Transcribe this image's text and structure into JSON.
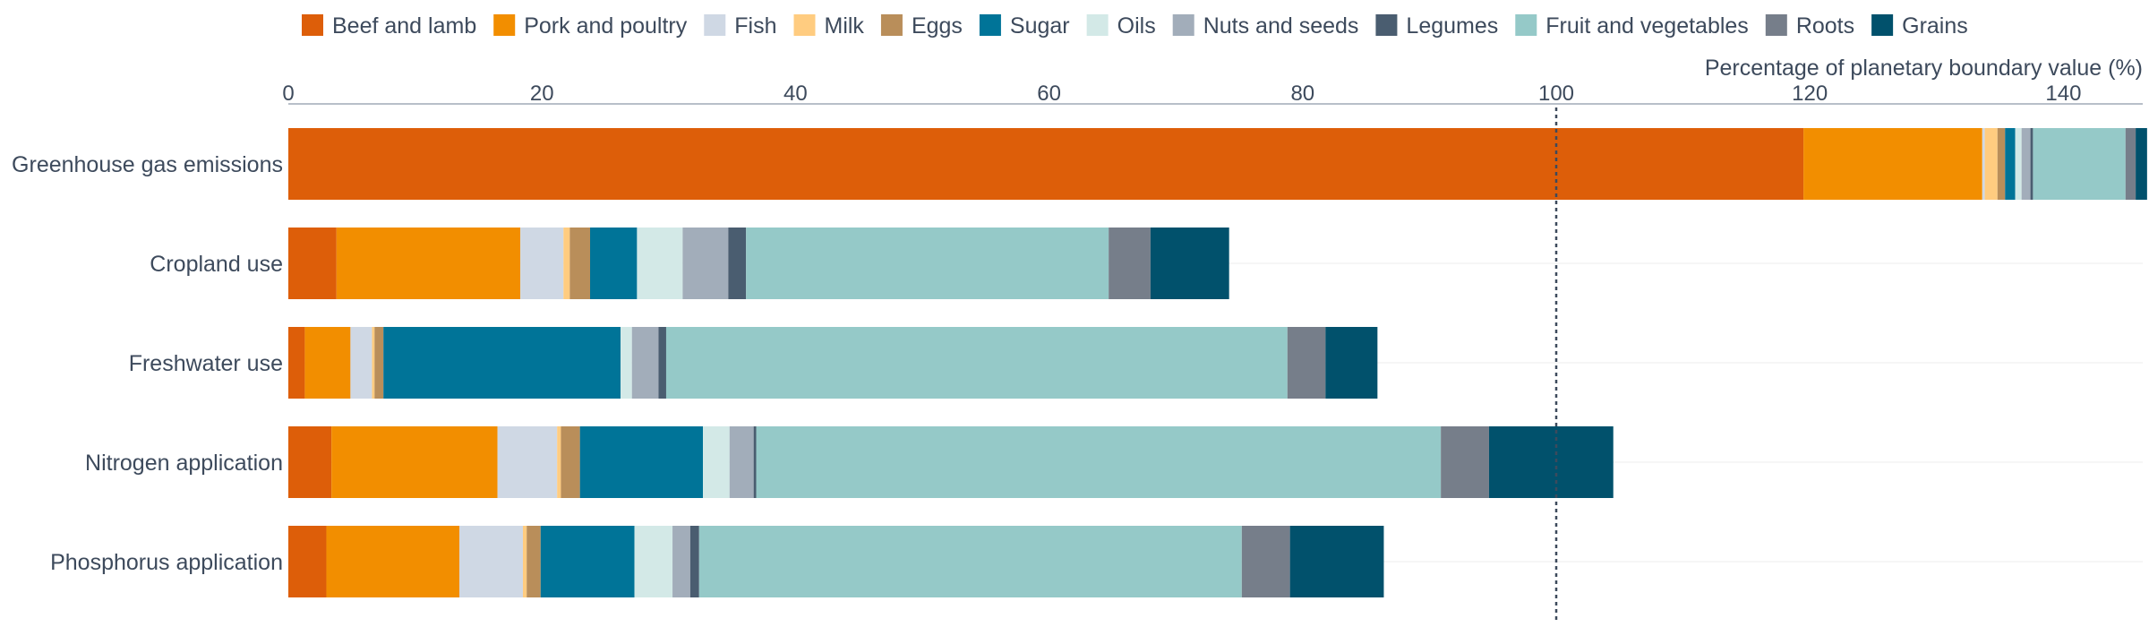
{
  "chart_data": {
    "type": "bar",
    "orientation": "horizontal",
    "stacked": true,
    "xlabel": "Percentage of planetary boundary value (%)",
    "xlim": [
      0,
      147
    ],
    "xticks": [
      0,
      20,
      40,
      60,
      80,
      100,
      120,
      140
    ],
    "reference_line": 100,
    "legend_position": "top",
    "categories": [
      "Greenhouse gas emissions",
      "Cropland use",
      "Freshwater use",
      "Nitrogen application",
      "Phosphorus application"
    ],
    "series": [
      {
        "name": "Beef and lamb",
        "color": "#dd5e09",
        "values": [
          119.5,
          3.8,
          1.3,
          3.4,
          3.0
        ]
      },
      {
        "name": "Pork and poultry",
        "color": "#f28e00",
        "values": [
          14.1,
          14.5,
          3.6,
          13.1,
          10.5
        ]
      },
      {
        "name": "Fish",
        "color": "#cfd8e4",
        "values": [
          0.2,
          3.4,
          1.7,
          4.7,
          5.0
        ]
      },
      {
        "name": "Milk",
        "color": "#ffcc80",
        "values": [
          1.0,
          0.5,
          0.2,
          0.3,
          0.3
        ]
      },
      {
        "name": "Eggs",
        "color": "#b98e5a",
        "values": [
          0.6,
          1.6,
          0.7,
          1.5,
          1.1
        ]
      },
      {
        "name": "Sugar",
        "color": "#007498",
        "values": [
          0.8,
          3.7,
          18.7,
          9.7,
          7.4
        ]
      },
      {
        "name": "Oils",
        "color": "#d3e9e7",
        "values": [
          0.5,
          3.6,
          0.9,
          2.1,
          3.0
        ]
      },
      {
        "name": "Nuts and seeds",
        "color": "#a2adba",
        "values": [
          0.7,
          3.6,
          2.1,
          1.9,
          1.4
        ]
      },
      {
        "name": "Legumes",
        "color": "#4a5d70",
        "values": [
          0.2,
          1.4,
          0.6,
          0.2,
          0.7
        ]
      },
      {
        "name": "Fruit and vegetables",
        "color": "#95c9c8",
        "values": [
          7.3,
          28.6,
          49.0,
          54.0,
          42.8
        ]
      },
      {
        "name": "Roots",
        "color": "#767e8a",
        "values": [
          0.8,
          3.3,
          3.0,
          3.8,
          3.8
        ]
      },
      {
        "name": "Grains",
        "color": "#01516c",
        "values": [
          0.9,
          6.2,
          4.1,
          9.8,
          7.4
        ]
      }
    ]
  }
}
